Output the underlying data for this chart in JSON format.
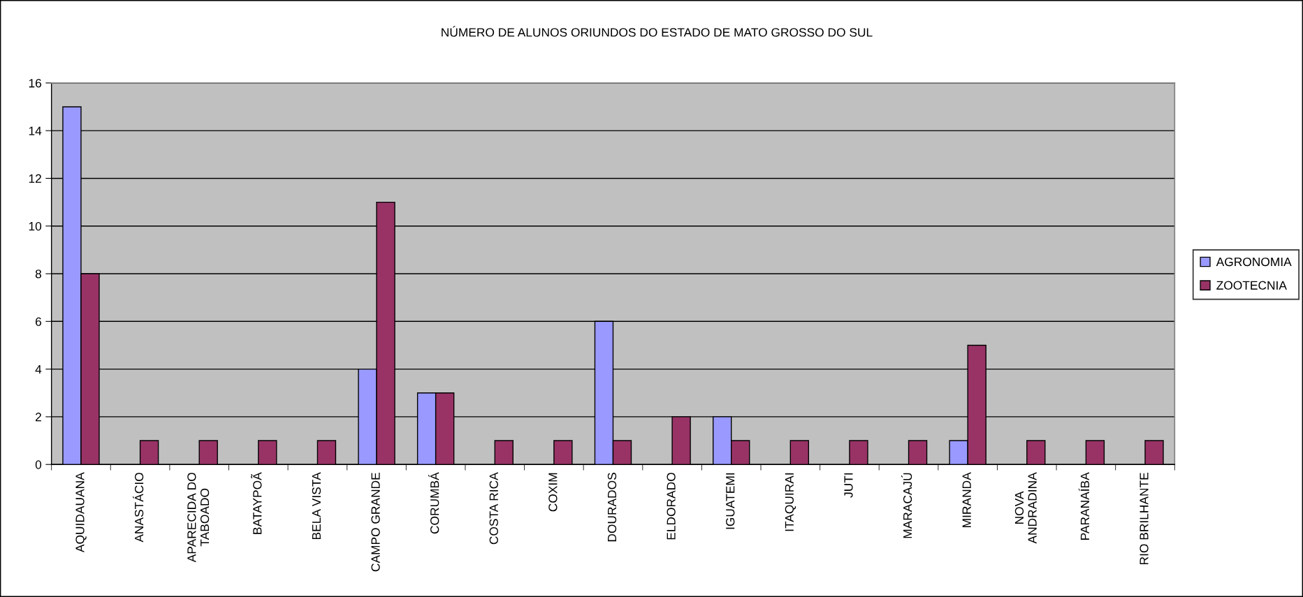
{
  "chart_data": {
    "type": "bar",
    "title": "NÚMERO DE ALUNOS ORIUNDOS DO ESTADO DE MATO GROSSO DO SUL",
    "categories": [
      "AQUIDAUANA",
      "ANASTÁCIO",
      "APARECIDA DO\nTABOADO",
      "BATAYPOÃ",
      "BELA VISTA",
      "CAMPO GRANDE",
      "CORUMBÁ",
      "COSTA RICA",
      "COXIM",
      "DOURADOS",
      "ELDORADO",
      "IGUATEMI",
      "ITAQUIRAI",
      "JUTI",
      "MARACAJÚ",
      "MIRANDA",
      "NOVA\nANDRADINA",
      "PARANAÍBA",
      "RIO BRILHANTE"
    ],
    "series": [
      {
        "name": "AGRONOMIA",
        "color": "#9999ff",
        "values": [
          15,
          null,
          null,
          null,
          null,
          4,
          3,
          null,
          null,
          6,
          null,
          2,
          null,
          null,
          null,
          1,
          null,
          null,
          null
        ]
      },
      {
        "name": "ZOOTECNIA",
        "color": "#993366",
        "values": [
          8,
          1,
          1,
          1,
          1,
          11,
          3,
          1,
          1,
          1,
          2,
          1,
          1,
          1,
          1,
          5,
          1,
          1,
          1
        ]
      }
    ],
    "ylim": [
      0,
      16
    ],
    "yticks": [
      0,
      2,
      4,
      6,
      8,
      10,
      12,
      14,
      16
    ],
    "grid": "y",
    "legend": "right"
  }
}
